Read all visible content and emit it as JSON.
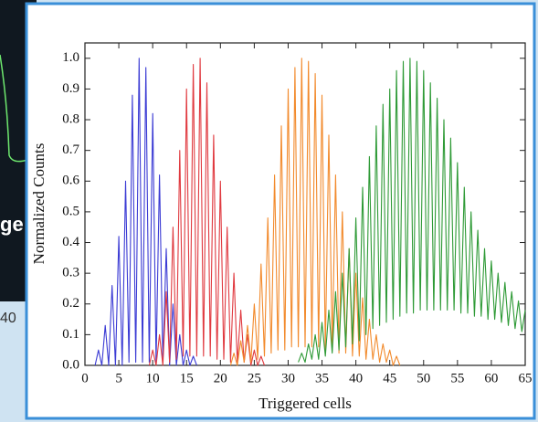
{
  "background": {
    "label_1": "ge",
    "label_2": "40"
  },
  "chart_data": {
    "type": "line",
    "xlabel": "Triggered cells",
    "ylabel": "Normalized Counts",
    "xlim": [
      0,
      65
    ],
    "ylim": [
      0,
      1.05
    ],
    "xticks": [
      0,
      5,
      10,
      15,
      20,
      25,
      30,
      35,
      40,
      45,
      50,
      55,
      60,
      65
    ],
    "yticks": [
      {
        "value": 0,
        "label": "0.0"
      },
      {
        "value": 0.1,
        "label": "0.1"
      },
      {
        "value": 0.2,
        "label": "0.2"
      },
      {
        "value": 0.3,
        "label": "0.3"
      },
      {
        "value": 0.4,
        "label": "0.4"
      },
      {
        "value": 0.5,
        "label": "0.5"
      },
      {
        "value": 0.6,
        "label": "0.6"
      },
      {
        "value": 0.7,
        "label": "0.7"
      },
      {
        "value": 0.8,
        "label": "0.8"
      },
      {
        "value": 0.9,
        "label": "0.9"
      },
      {
        "value": 1.0,
        "label": "1.0"
      }
    ],
    "series": [
      {
        "color": "#3b3bd4",
        "x": [
          1.5,
          2,
          2.5,
          3,
          3.5,
          4,
          4.5,
          5,
          5.5,
          6,
          6.5,
          7,
          7.5,
          8,
          8.5,
          9,
          9.5,
          10,
          10.5,
          11,
          11.5,
          12,
          12.5,
          13,
          13.5,
          14,
          14.5,
          15,
          15.5,
          16,
          16.5
        ],
        "values": [
          0,
          0.05,
          0,
          0.13,
          0,
          0.26,
          0,
          0.42,
          0,
          0.6,
          0.01,
          0.88,
          0.01,
          1.0,
          0.01,
          0.97,
          0.01,
          0.82,
          0.01,
          0.62,
          0.01,
          0.38,
          0,
          0.2,
          0,
          0.1,
          0,
          0.05,
          0,
          0.03,
          0
        ]
      },
      {
        "color": "#e0393f",
        "x": [
          9.5,
          10,
          10.5,
          11,
          11.5,
          12,
          12.5,
          13,
          13.5,
          14,
          14.5,
          15,
          15.5,
          16,
          16.5,
          17,
          17.5,
          18,
          18.5,
          19,
          19.5,
          20,
          20.5,
          21,
          21.5,
          22,
          22.5,
          23,
          23.5,
          24,
          24.5,
          25,
          25.5,
          26,
          26.5
        ],
        "values": [
          0,
          0.05,
          0,
          0.1,
          0,
          0.24,
          0.01,
          0.45,
          0.02,
          0.7,
          0.03,
          0.9,
          0.03,
          0.98,
          0.03,
          1.0,
          0.03,
          0.92,
          0.03,
          0.75,
          0.02,
          0.6,
          0.02,
          0.45,
          0.01,
          0.3,
          0.01,
          0.18,
          0.01,
          0.1,
          0,
          0.05,
          0,
          0.03,
          0
        ]
      },
      {
        "color": "#f28a2c",
        "x": [
          21.5,
          22,
          22.5,
          23,
          23.5,
          24,
          24.5,
          25,
          25.5,
          26,
          26.5,
          27,
          27.5,
          28,
          28.5,
          29,
          29.5,
          30,
          30.5,
          31,
          31.5,
          32,
          32.5,
          33,
          33.5,
          34,
          34.5,
          35,
          35.5,
          36,
          36.5,
          37,
          37.5,
          38,
          38.5,
          39,
          39.5,
          40,
          40.5,
          41,
          41.5,
          42,
          42.5,
          43,
          43.5,
          44,
          44.5,
          45,
          45.5,
          46,
          46.5
        ],
        "values": [
          0,
          0.04,
          0,
          0.08,
          0.01,
          0.13,
          0.01,
          0.2,
          0.02,
          0.33,
          0.03,
          0.48,
          0.04,
          0.62,
          0.05,
          0.78,
          0.05,
          0.9,
          0.06,
          0.97,
          0.06,
          1.0,
          0.06,
          0.99,
          0.06,
          0.95,
          0.06,
          0.88,
          0.05,
          0.75,
          0.05,
          0.62,
          0.04,
          0.5,
          0.04,
          0.38,
          0.03,
          0.3,
          0.03,
          0.22,
          0.02,
          0.15,
          0.02,
          0.1,
          0.01,
          0.07,
          0.01,
          0.05,
          0,
          0.03,
          0
        ]
      },
      {
        "color": "#2e9a36",
        "x": [
          31.5,
          32,
          32.5,
          33,
          33.5,
          34,
          34.5,
          35,
          35.5,
          36,
          36.5,
          37,
          37.5,
          38,
          38.5,
          39,
          39.5,
          40,
          40.5,
          41,
          41.5,
          42,
          42.5,
          43,
          43.5,
          44,
          44.5,
          45,
          45.5,
          46,
          46.5,
          47,
          47.5,
          48,
          48.5,
          49,
          49.5,
          50,
          50.5,
          51,
          51.5,
          52,
          52.5,
          53,
          53.5,
          54,
          54.5,
          55,
          55.5,
          56,
          56.5,
          57,
          57.5,
          58,
          58.5,
          59,
          59.5,
          60,
          60.5,
          61,
          61.5,
          62,
          62.5,
          63,
          63.5,
          64,
          64.5,
          65
        ],
        "values": [
          0.01,
          0.04,
          0.01,
          0.07,
          0.02,
          0.1,
          0.02,
          0.14,
          0.03,
          0.18,
          0.04,
          0.24,
          0.05,
          0.3,
          0.06,
          0.38,
          0.07,
          0.48,
          0.08,
          0.58,
          0.1,
          0.68,
          0.12,
          0.78,
          0.13,
          0.85,
          0.14,
          0.9,
          0.15,
          0.96,
          0.16,
          0.99,
          0.17,
          1.0,
          0.17,
          0.99,
          0.18,
          0.96,
          0.18,
          0.92,
          0.18,
          0.87,
          0.18,
          0.8,
          0.18,
          0.74,
          0.18,
          0.66,
          0.17,
          0.58,
          0.17,
          0.5,
          0.16,
          0.44,
          0.16,
          0.38,
          0.15,
          0.34,
          0.15,
          0.3,
          0.14,
          0.27,
          0.13,
          0.24,
          0.12,
          0.21,
          0.11,
          0.18
        ]
      }
    ]
  }
}
